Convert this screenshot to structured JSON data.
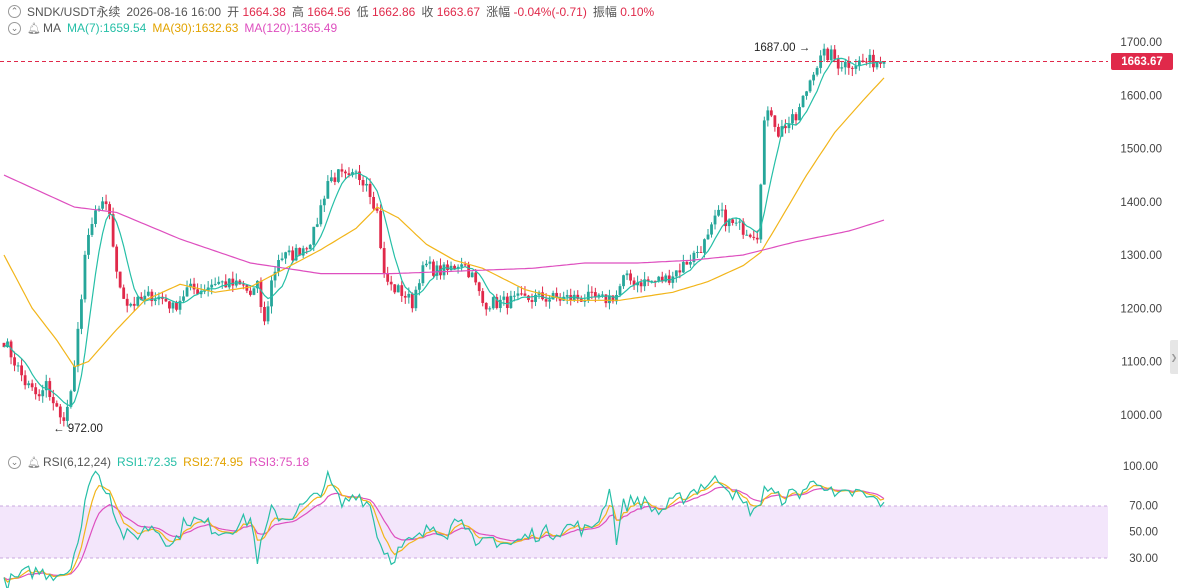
{
  "header": {
    "symbol": "SNDK/USDT永续",
    "datetime": "2026-08-16 16:00",
    "open_label": "开",
    "open": "1664.38",
    "high_label": "高",
    "high": "1664.56",
    "low_label": "低",
    "low": "1662.86",
    "close_label": "收",
    "close": "1663.67",
    "change_label": "涨幅",
    "change": "-0.04%(-0.71)",
    "amp_label": "振幅",
    "amp": "0.10%"
  },
  "ma_legend": {
    "name": "MA",
    "ma7": "MA(7):1659.54",
    "ma30": "MA(30):1632.63",
    "ma120": "MA(120):1365.49"
  },
  "rsi_legend": {
    "name": "RSI(6,12,24)",
    "rsi1": "RSI1:72.35",
    "rsi2": "RSI2:74.95",
    "rsi3": "RSI3:75.18"
  },
  "colors": {
    "up": "#26a69a",
    "down": "#e0294a",
    "ma7": "#26bfa7",
    "ma30": "#f2b51a",
    "ma120": "#de4fbf",
    "rsi1": "#26bfa7",
    "rsi2": "#f2b51a",
    "rsi3": "#de4fbf",
    "rsi_band": "#f3e6fb"
  },
  "chart_data": [
    {
      "type": "candlestick",
      "y_ticks": [
        "1700.00",
        "1600.00",
        "1500.00",
        "1400.00",
        "1300.00",
        "1200.00",
        "1100.00",
        "1000.00"
      ],
      "ylim": [
        955,
        1740
      ],
      "last_price": "1663.67",
      "annotations": {
        "high_label": "1687.00",
        "low_label": "972.00"
      },
      "anchors": [
        [
          0,
          1140
        ],
        [
          6,
          1060
        ],
        [
          10,
          1030
        ],
        [
          12,
          1055
        ],
        [
          15,
          1010
        ],
        [
          16,
          990
        ],
        [
          18,
          1010
        ],
        [
          20,
          1080
        ],
        [
          23,
          1300
        ],
        [
          26,
          1380
        ],
        [
          28,
          1390
        ],
        [
          30,
          1380
        ],
        [
          32,
          1260
        ],
        [
          35,
          1210
        ],
        [
          38,
          1210
        ],
        [
          42,
          1225
        ],
        [
          46,
          1215
        ],
        [
          48,
          1200
        ],
        [
          52,
          1235
        ],
        [
          56,
          1235
        ],
        [
          60,
          1250
        ],
        [
          64,
          1245
        ],
        [
          68,
          1240
        ],
        [
          70,
          1225
        ],
        [
          72,
          1240
        ],
        [
          74,
          1170
        ],
        [
          76,
          1250
        ],
        [
          78,
          1295
        ],
        [
          82,
          1300
        ],
        [
          86,
          1320
        ],
        [
          88,
          1340
        ],
        [
          90,
          1390
        ],
        [
          92,
          1440
        ],
        [
          95,
          1450
        ],
        [
          98,
          1440
        ],
        [
          100,
          1450
        ],
        [
          103,
          1440
        ],
        [
          106,
          1380
        ],
        [
          108,
          1260
        ],
        [
          110,
          1240
        ],
        [
          113,
          1230
        ],
        [
          116,
          1210
        ],
        [
          118,
          1260
        ],
        [
          120,
          1280
        ],
        [
          123,
          1270
        ],
        [
          126,
          1270
        ],
        [
          130,
          1290
        ],
        [
          133,
          1260
        ],
        [
          136,
          1210
        ],
        [
          140,
          1210
        ],
        [
          146,
          1215
        ],
        [
          152,
          1220
        ],
        [
          158,
          1218
        ],
        [
          164,
          1220
        ],
        [
          170,
          1215
        ],
        [
          174,
          1225
        ],
        [
          176,
          1255
        ],
        [
          180,
          1250
        ],
        [
          184,
          1250
        ],
        [
          188,
          1255
        ],
        [
          192,
          1275
        ],
        [
          196,
          1300
        ],
        [
          200,
          1330
        ],
        [
          203,
          1380
        ],
        [
          206,
          1360
        ],
        [
          210,
          1350
        ],
        [
          214,
          1340
        ],
        [
          216,
          1550
        ],
        [
          218,
          1570
        ],
        [
          220,
          1530
        ],
        [
          222,
          1545
        ],
        [
          225,
          1555
        ],
        [
          228,
          1610
        ],
        [
          230,
          1650
        ],
        [
          233,
          1675
        ],
        [
          235,
          1675
        ],
        [
          237,
          1660
        ],
        [
          240,
          1660
        ],
        [
          244,
          1662
        ],
        [
          248,
          1664
        ],
        [
          250,
          1663.67
        ]
      ],
      "ma_ranges": {
        "ma30": [
          [
            0,
            1300
          ],
          [
            8,
            1200
          ],
          [
            15,
            1140
          ],
          [
            20,
            1090
          ],
          [
            24,
            1100
          ],
          [
            32,
            1160
          ],
          [
            40,
            1215
          ],
          [
            50,
            1245
          ],
          [
            60,
            1230
          ],
          [
            70,
            1240
          ],
          [
            80,
            1275
          ],
          [
            90,
            1310
          ],
          [
            100,
            1350
          ],
          [
            106,
            1390
          ],
          [
            112,
            1370
          ],
          [
            120,
            1320
          ],
          [
            128,
            1290
          ],
          [
            136,
            1275
          ],
          [
            148,
            1235
          ],
          [
            160,
            1215
          ],
          [
            175,
            1215
          ],
          [
            190,
            1230
          ],
          [
            200,
            1250
          ],
          [
            210,
            1280
          ],
          [
            215,
            1305
          ],
          [
            220,
            1360
          ],
          [
            228,
            1450
          ],
          [
            236,
            1530
          ],
          [
            244,
            1590
          ],
          [
            250,
            1632.63
          ]
        ],
        "ma120": [
          [
            0,
            1450
          ],
          [
            20,
            1390
          ],
          [
            32,
            1380
          ],
          [
            50,
            1330
          ],
          [
            70,
            1285
          ],
          [
            90,
            1265
          ],
          [
            110,
            1265
          ],
          [
            130,
            1270
          ],
          [
            150,
            1275
          ],
          [
            165,
            1285
          ],
          [
            180,
            1285
          ],
          [
            195,
            1290
          ],
          [
            210,
            1300
          ],
          [
            225,
            1325
          ],
          [
            240,
            1345
          ],
          [
            250,
            1365.49
          ]
        ]
      }
    },
    {
      "type": "line",
      "indicator": "RSI",
      "y_ticks": [
        "100.00",
        "70.00",
        "50.00",
        "30.00"
      ],
      "ylim": [
        0,
        100
      ],
      "band": [
        30,
        70
      ],
      "rsi_anchors": [
        [
          0,
          10
        ],
        [
          8,
          20
        ],
        [
          14,
          18
        ],
        [
          18,
          20
        ],
        [
          22,
          50
        ],
        [
          24,
          90
        ],
        [
          26,
          95
        ],
        [
          30,
          80
        ],
        [
          33,
          50
        ],
        [
          36,
          45
        ],
        [
          42,
          55
        ],
        [
          48,
          40
        ],
        [
          52,
          60
        ],
        [
          58,
          55
        ],
        [
          62,
          50
        ],
        [
          66,
          55
        ],
        [
          70,
          60
        ],
        [
          72,
          30
        ],
        [
          76,
          65
        ],
        [
          80,
          60
        ],
        [
          88,
          75
        ],
        [
          92,
          90
        ],
        [
          96,
          70
        ],
        [
          100,
          80
        ],
        [
          104,
          70
        ],
        [
          107,
          40
        ],
        [
          110,
          30
        ],
        [
          114,
          40
        ],
        [
          118,
          45
        ],
        [
          122,
          55
        ],
        [
          126,
          50
        ],
        [
          130,
          65
        ],
        [
          134,
          35
        ],
        [
          138,
          45
        ],
        [
          144,
          40
        ],
        [
          150,
          48
        ],
        [
          156,
          50
        ],
        [
          162,
          55
        ],
        [
          166,
          50
        ],
        [
          170,
          65
        ],
        [
          172,
          85
        ],
        [
          174,
          45
        ],
        [
          176,
          70
        ],
        [
          180,
          75
        ],
        [
          186,
          65
        ],
        [
          192,
          75
        ],
        [
          198,
          85
        ],
        [
          204,
          90
        ],
        [
          210,
          70
        ],
        [
          214,
          65
        ],
        [
          216,
          85
        ],
        [
          220,
          75
        ],
        [
          226,
          80
        ],
        [
          232,
          90
        ],
        [
          236,
          75
        ],
        [
          242,
          80
        ],
        [
          246,
          75
        ],
        [
          250,
          72.35
        ]
      ],
      "last": {
        "rsi1": 72.35,
        "rsi2": 74.95,
        "rsi3": 75.18
      }
    }
  ]
}
